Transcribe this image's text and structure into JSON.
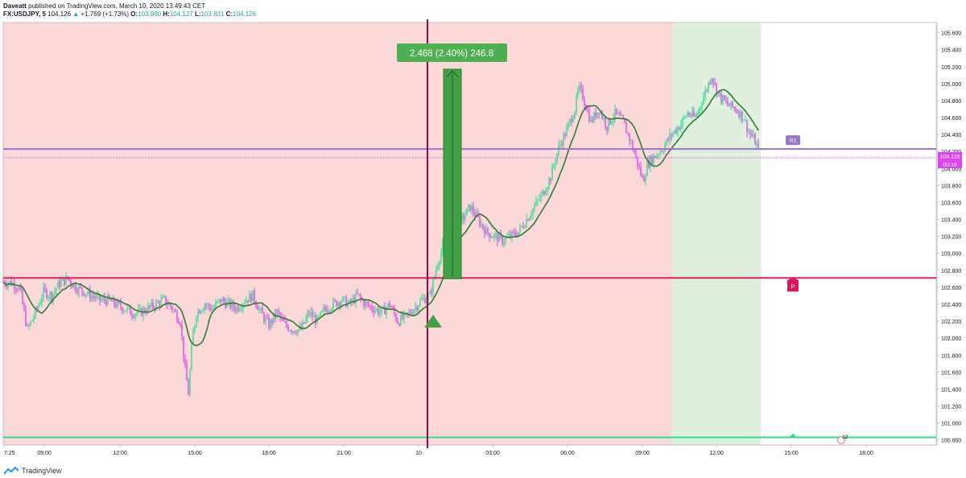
{
  "header": {
    "author": "Daveatt",
    "published_text": "published on TradingView.com, March 10, 2020 13:49:43 CET",
    "symbol": "FX:USDJPY, 5",
    "last": "104.126",
    "change": "+1.769 (+1.73%)",
    "o_label": "O:",
    "o_value": "103.980",
    "h_label": "H:",
    "h_value": "104.127",
    "l_label": "L:",
    "l_value": "103.831",
    "c_label": "C:",
    "c_value": "104.126"
  },
  "footer": {
    "brand": "TradingView"
  },
  "colors": {
    "up": "#26e08a",
    "down": "#d946ef",
    "ma": "#2e7d32",
    "bg_red": "#fcd9d9",
    "bg_green": "#dff0dc",
    "r1": "#9575cd",
    "pivot": "#d81b60",
    "bottom": "#26e08a",
    "vline": "#880e4f",
    "trade_bar": "#43a047",
    "price_line": "#e040fb"
  },
  "chart_data": {
    "type": "candlestick",
    "title": "",
    "y_ticks": [
      "105.600",
      "105.400",
      "105.200",
      "105.000",
      "104.800",
      "104.600",
      "104.400",
      "104.200",
      "104.000",
      "103.800",
      "103.600",
      "103.400",
      "103.200",
      "103.000",
      "102.800",
      "102.600",
      "102.400",
      "102.200",
      "102.000",
      "101.800",
      "101.600",
      "101.400",
      "101.200",
      "101.000",
      "100.800"
    ],
    "ylim": [
      100.74,
      105.72
    ],
    "x_ticks": [
      "7:25",
      "09:00",
      "12:00",
      "15:00",
      "18:00",
      "21:00",
      "10",
      "03:00",
      "06:00",
      "09:00",
      "12:00",
      "15:00",
      "18:00"
    ],
    "levels": {
      "R1": {
        "label": "R1",
        "value": 104.23
      },
      "P": {
        "label": "P",
        "value": 102.71
      },
      "bottom": {
        "value": 100.83
      }
    },
    "current_price": {
      "value": "104.126",
      "countdown": "00:18"
    },
    "trade_box": {
      "text": "2.468 (2.40%) 246.8",
      "from": 102.7,
      "to": 105.17
    },
    "session_marker": "10",
    "badge_text": "22",
    "price_path": [
      [
        0,
        102.66
      ],
      [
        10,
        102.65
      ],
      [
        20,
        102.6
      ],
      [
        30,
        102.1
      ],
      [
        40,
        102.3
      ],
      [
        50,
        102.55
      ],
      [
        60,
        102.5
      ],
      [
        70,
        102.65
      ],
      [
        80,
        102.7
      ],
      [
        90,
        102.6
      ],
      [
        100,
        102.55
      ],
      [
        110,
        102.5
      ],
      [
        120,
        102.45
      ],
      [
        130,
        102.45
      ],
      [
        140,
        102.4
      ],
      [
        150,
        102.35
      ],
      [
        160,
        102.3
      ],
      [
        170,
        102.3
      ],
      [
        180,
        102.35
      ],
      [
        190,
        102.4
      ],
      [
        200,
        102.45
      ],
      [
        210,
        102.35
      ],
      [
        220,
        102.2
      ],
      [
        225,
        101.7
      ],
      [
        230,
        101.35
      ],
      [
        235,
        102.0
      ],
      [
        240,
        102.3
      ],
      [
        250,
        102.4
      ],
      [
        260,
        102.35
      ],
      [
        270,
        102.45
      ],
      [
        280,
        102.4
      ],
      [
        290,
        102.35
      ],
      [
        300,
        102.45
      ],
      [
        310,
        102.5
      ],
      [
        320,
        102.3
      ],
      [
        330,
        102.15
      ],
      [
        340,
        102.3
      ],
      [
        350,
        102.15
      ],
      [
        360,
        102.1
      ],
      [
        370,
        102.1
      ],
      [
        380,
        102.3
      ],
      [
        390,
        102.2
      ],
      [
        400,
        102.35
      ],
      [
        410,
        102.4
      ],
      [
        420,
        102.45
      ],
      [
        430,
        102.4
      ],
      [
        440,
        102.5
      ],
      [
        450,
        102.4
      ],
      [
        460,
        102.35
      ],
      [
        470,
        102.3
      ],
      [
        480,
        102.4
      ],
      [
        490,
        102.2
      ],
      [
        500,
        102.25
      ],
      [
        510,
        102.35
      ],
      [
        520,
        102.45
      ],
      [
        530,
        102.5
      ],
      [
        540,
        102.9
      ],
      [
        550,
        103.2
      ],
      [
        560,
        103.1
      ],
      [
        570,
        103.4
      ],
      [
        580,
        103.55
      ],
      [
        590,
        103.4
      ],
      [
        600,
        103.25
      ],
      [
        610,
        103.2
      ],
      [
        620,
        103.15
      ],
      [
        630,
        103.2
      ],
      [
        640,
        103.25
      ],
      [
        650,
        103.4
      ],
      [
        660,
        103.55
      ],
      [
        670,
        103.7
      ],
      [
        680,
        103.9
      ],
      [
        690,
        104.25
      ],
      [
        700,
        104.45
      ],
      [
        710,
        104.7
      ],
      [
        715,
        104.95
      ],
      [
        720,
        104.85
      ],
      [
        730,
        104.55
      ],
      [
        740,
        104.7
      ],
      [
        750,
        104.5
      ],
      [
        760,
        104.65
      ],
      [
        770,
        104.55
      ],
      [
        780,
        104.3
      ],
      [
        790,
        104.0
      ],
      [
        795,
        103.85
      ],
      [
        800,
        104.05
      ],
      [
        810,
        104.15
      ],
      [
        820,
        104.25
      ],
      [
        830,
        104.4
      ],
      [
        840,
        104.5
      ],
      [
        850,
        104.65
      ],
      [
        860,
        104.6
      ],
      [
        870,
        104.85
      ],
      [
        880,
        105.1
      ],
      [
        885,
        104.95
      ],
      [
        890,
        104.85
      ],
      [
        900,
        104.75
      ],
      [
        910,
        104.7
      ],
      [
        920,
        104.6
      ],
      [
        925,
        104.45
      ],
      [
        935,
        104.3
      ],
      [
        942,
        104.1
      ]
    ]
  }
}
